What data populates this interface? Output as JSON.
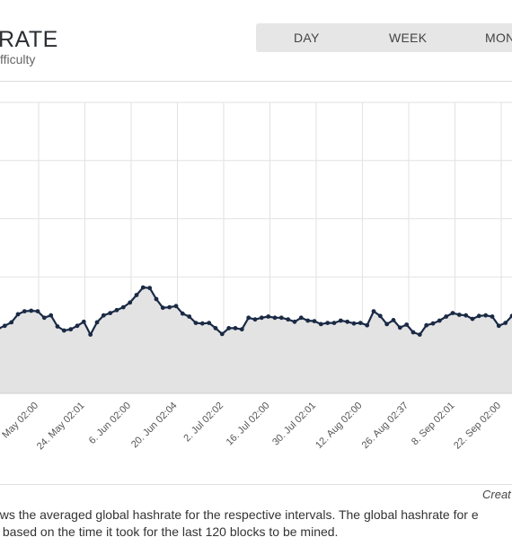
{
  "header": {
    "title": "RATE",
    "subtitle": "fficulty"
  },
  "range_buttons": [
    {
      "label": "DAY"
    },
    {
      "label": "WEEK"
    },
    {
      "label": "MON"
    }
  ],
  "footer": {
    "credit": "Creat",
    "description_line1": "ows the averaged global hashrate for the respective intervals. The global hashrate for e",
    "description_line2": "s based on the time it took for the last 120 blocks to be mined."
  },
  "colors": {
    "line": "#1a2a45",
    "area": "#e3e3e3",
    "grid": "#e2e2e2",
    "button_bar": "#e6e6e6"
  },
  "chart_data": {
    "type": "area",
    "title": "",
    "xlabel": "",
    "ylabel": "",
    "grid": true,
    "x_tick_labels": [
      "May 02:00",
      "24. May 02:01",
      "6. Jun 02:00",
      "20. Jun 02:04",
      "2. Jul 02:02",
      "16. Jul 02:00",
      "30. Jul 02:01",
      "12. Aug 02:00",
      "26. Aug 02:37",
      "8. Sep 02:01",
      "22. Sep 02:00",
      "4"
    ],
    "series": [
      {
        "values": [
          1.11,
          1.16,
          1.22,
          1.36,
          1.41,
          1.42,
          1.41,
          1.3,
          1.34,
          1.15,
          1.08,
          1.1,
          1.16,
          1.23,
          1.01,
          1.22,
          1.34,
          1.38,
          1.43,
          1.48,
          1.56,
          1.69,
          1.82,
          1.81,
          1.62,
          1.47,
          1.48,
          1.5,
          1.37,
          1.32,
          1.21,
          1.2,
          1.21,
          1.12,
          1.02,
          1.12,
          1.12,
          1.1,
          1.3,
          1.27,
          1.3,
          1.32,
          1.3,
          1.3,
          1.27,
          1.23,
          1.3,
          1.25,
          1.24,
          1.19,
          1.21,
          1.21,
          1.25,
          1.23,
          1.2,
          1.21,
          1.17,
          1.41,
          1.33,
          1.19,
          1.26,
          1.13,
          1.18,
          1.05,
          1.01,
          1.17,
          1.2,
          1.25,
          1.32,
          1.38,
          1.35,
          1.34,
          1.28,
          1.33,
          1.34,
          1.32,
          1.16,
          1.21,
          1.33
        ]
      }
    ]
  }
}
